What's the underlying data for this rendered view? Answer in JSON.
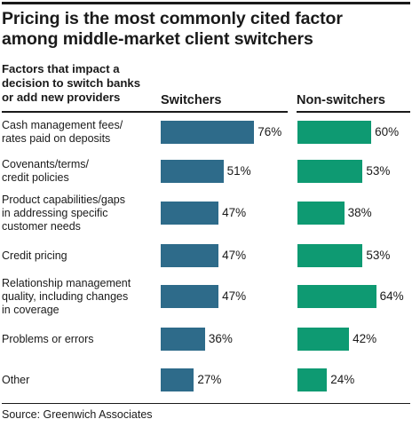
{
  "title_lines": [
    "Pricing is the most commonly cited factor",
    "among middle-market client switchers"
  ],
  "factors_header_lines": [
    "Factors that impact a",
    "decision to switch banks",
    "or add new providers"
  ],
  "source": "Source: Greenwich Associates",
  "colors": {
    "switchers": "#2e6b8a",
    "non_switchers": "#0e9a72"
  },
  "chart_data": {
    "type": "bar",
    "orientation": "horizontal",
    "title": "Pricing is the most commonly cited factor among middle-market client switchers",
    "categories": [
      [
        "Cash management fees/",
        "rates paid on deposits"
      ],
      [
        "Covenants/terms/",
        "credit policies"
      ],
      [
        "Product capabilities/gaps",
        "in addressing specific",
        "customer needs"
      ],
      [
        "Credit pricing"
      ],
      [
        "Relationship management",
        "quality, including changes",
        "in coverage"
      ],
      [
        "Problems or errors"
      ],
      [
        "Other"
      ]
    ],
    "series": [
      {
        "name": "Switchers",
        "values": [
          76,
          51,
          47,
          47,
          47,
          36,
          27
        ],
        "labels": [
          "76%",
          "51%",
          "47%",
          "47%",
          "47%",
          "36%",
          "27%"
        ]
      },
      {
        "name": "Non-switchers",
        "values": [
          60,
          53,
          38,
          53,
          64,
          42,
          24
        ],
        "labels": [
          "60%",
          "53%",
          "38%",
          "53%",
          "64%",
          "42%",
          "24%"
        ]
      }
    ],
    "unit": "%",
    "legend": "column headers"
  }
}
